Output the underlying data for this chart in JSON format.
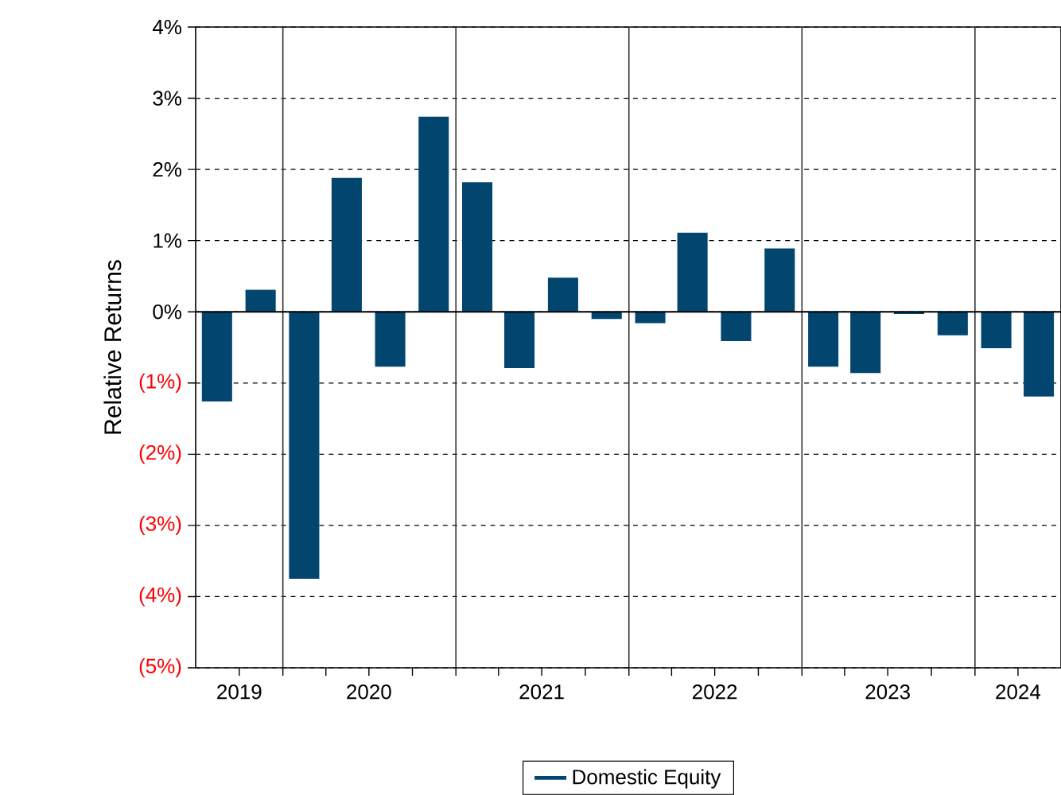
{
  "chart_data": {
    "type": "bar",
    "ylabel": "Relative Returns",
    "x": [
      "2019-08-15",
      "2019-11-15",
      "2020-02-15",
      "2020-05-15",
      "2020-08-15",
      "2020-11-15",
      "2021-02-15",
      "2021-05-15",
      "2021-08-15",
      "2021-11-15",
      "2022-02-15",
      "2022-05-15",
      "2022-08-15",
      "2022-11-15",
      "2023-02-15",
      "2023-05-15",
      "2023-08-15",
      "2023-11-15",
      "2024-02-15",
      "2024-05-15"
    ],
    "series": [
      {
        "name": "Domestic Equity",
        "color": "#02466f",
        "values": [
          -1.26,
          0.31,
          -3.75,
          1.88,
          -0.77,
          2.74,
          1.82,
          -0.79,
          0.48,
          -0.1,
          -0.16,
          1.11,
          -0.41,
          0.89,
          -0.77,
          -0.86,
          -0.03,
          -0.33,
          -0.51,
          -1.19
        ]
      }
    ],
    "xlim": [
      "2019-07",
      "2024-07"
    ],
    "xticks": [
      {
        "value": "2019-10",
        "label": "2019"
      },
      {
        "value": "2020-01",
        "label": null
      },
      {
        "value": "2020-04",
        "label": null
      },
      {
        "value": "2020-07",
        "label": "2020"
      },
      {
        "value": "2020-10",
        "label": null
      },
      {
        "value": "2021-01",
        "label": null
      },
      {
        "value": "2021-04",
        "label": null
      },
      {
        "value": "2021-07",
        "label": "2021"
      },
      {
        "value": "2021-10",
        "label": null
      },
      {
        "value": "2022-01",
        "label": null
      },
      {
        "value": "2022-04",
        "label": null
      },
      {
        "value": "2022-07",
        "label": "2022"
      },
      {
        "value": "2022-10",
        "label": null
      },
      {
        "value": "2023-01",
        "label": null
      },
      {
        "value": "2023-04",
        "label": null
      },
      {
        "value": "2023-07",
        "label": "2023"
      },
      {
        "value": "2023-10",
        "label": null
      },
      {
        "value": "2024-01",
        "label": null
      },
      {
        "value": "2024-04",
        "label": "2024"
      }
    ],
    "ylim": [
      -5,
      4
    ],
    "yticks": [
      {
        "value": -5,
        "label": "(5%)"
      },
      {
        "value": -4,
        "label": "(4%)"
      },
      {
        "value": -3,
        "label": "(3%)"
      },
      {
        "value": -2,
        "label": "(2%)"
      },
      {
        "value": -1,
        "label": "(1%)"
      },
      {
        "value": 0,
        "label": "0%"
      },
      {
        "value": 1,
        "label": "1%"
      },
      {
        "value": 2,
        "label": "2%"
      },
      {
        "value": 3,
        "label": "3%"
      },
      {
        "value": 4,
        "label": "4%"
      }
    ],
    "ref_lines": [
      {
        "axis": "y",
        "value": 0,
        "color": "#000000",
        "line_style": "solid"
      },
      {
        "axis": "x",
        "value": "2020-01",
        "color": "#333333",
        "line_style": "solid"
      },
      {
        "axis": "x",
        "value": "2021-01",
        "color": "#333333",
        "line_style": "solid"
      },
      {
        "axis": "x",
        "value": "2022-01",
        "color": "#333333",
        "line_style": "solid"
      },
      {
        "axis": "x",
        "value": "2023-01",
        "color": "#333333",
        "line_style": "solid"
      },
      {
        "axis": "x",
        "value": "2024-01",
        "color": "#333333",
        "line_style": "solid"
      }
    ],
    "grid": "y",
    "legend": "bottom"
  }
}
